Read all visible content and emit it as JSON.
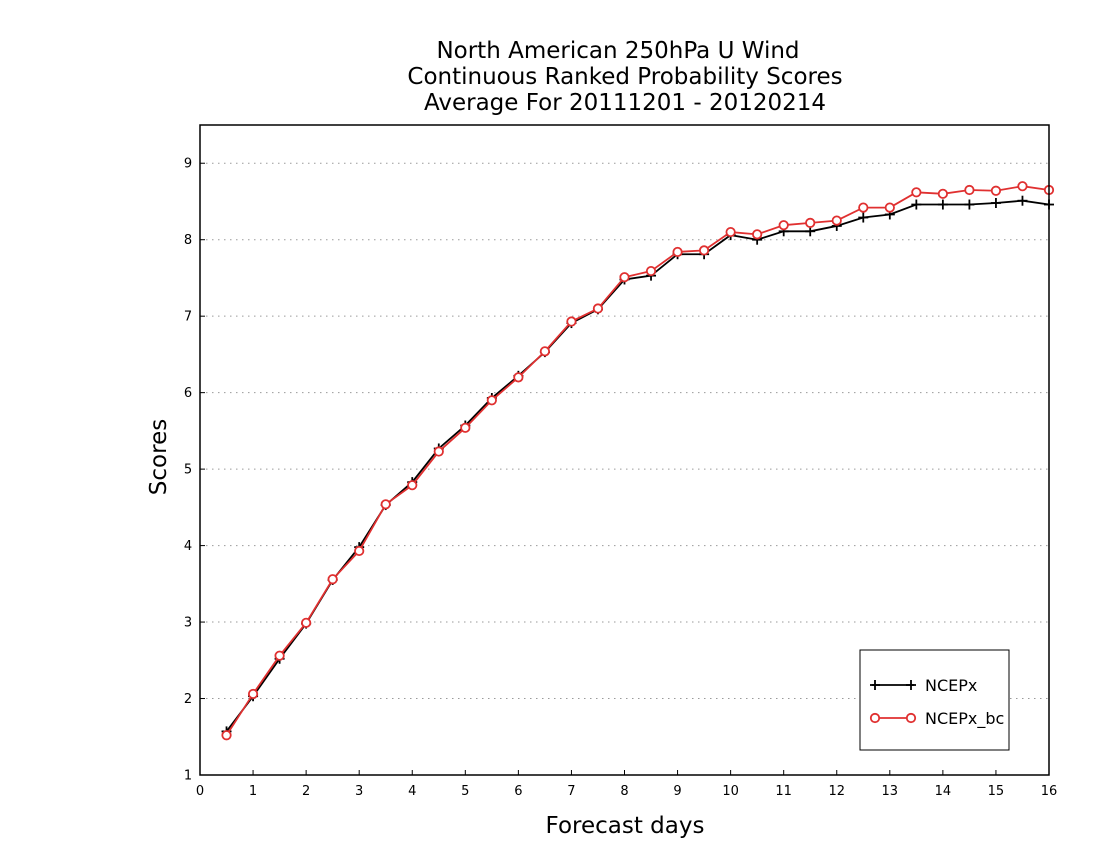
{
  "chart_data": {
    "type": "line",
    "title": [
      "North American 250hPa U Wind",
      "Continuous Ranked Probability Scores",
      "Average For 20111201 - 20120214"
    ],
    "xlabel": "Forecast days",
    "ylabel": "Scores",
    "xlim": [
      0,
      16
    ],
    "ylim": [
      1,
      9.5
    ],
    "xticks": [
      0,
      1,
      2,
      3,
      4,
      5,
      6,
      7,
      8,
      9,
      10,
      11,
      12,
      13,
      14,
      15,
      16
    ],
    "yticks": [
      1,
      2,
      3,
      4,
      5,
      6,
      7,
      8,
      9
    ],
    "grid": "horizontal dotted",
    "legend_position": "bottom-right",
    "x": [
      0.5,
      1,
      1.5,
      2,
      2.5,
      3,
      3.5,
      4,
      4.5,
      5,
      5.5,
      6,
      6.5,
      7,
      7.5,
      8,
      8.5,
      9,
      9.5,
      10,
      10.5,
      11,
      11.5,
      12,
      12.5,
      13,
      13.5,
      14,
      14.5,
      15,
      15.5,
      16
    ],
    "series": [
      {
        "name": "NCEPx",
        "color": "#000000",
        "marker": "plus",
        "values": [
          1.57,
          2.03,
          2.52,
          2.98,
          3.55,
          3.98,
          4.53,
          4.83,
          5.27,
          5.57,
          5.93,
          6.22,
          6.53,
          6.91,
          7.09,
          7.48,
          7.53,
          7.81,
          7.81,
          8.06,
          8.0,
          8.11,
          8.11,
          8.18,
          8.29,
          8.33,
          8.46,
          8.46,
          8.46,
          8.48,
          8.51,
          8.46
        ]
      },
      {
        "name": "NCEPx_bc",
        "color": "#e03030",
        "marker": "circle",
        "values": [
          1.52,
          2.06,
          2.56,
          2.99,
          3.56,
          3.93,
          4.54,
          4.79,
          5.23,
          5.54,
          5.9,
          6.2,
          6.54,
          6.93,
          7.1,
          7.51,
          7.59,
          7.84,
          7.86,
          8.1,
          8.07,
          8.19,
          8.22,
          8.25,
          8.42,
          8.42,
          8.62,
          8.6,
          8.65,
          8.64,
          8.7,
          8.65
        ]
      }
    ]
  }
}
